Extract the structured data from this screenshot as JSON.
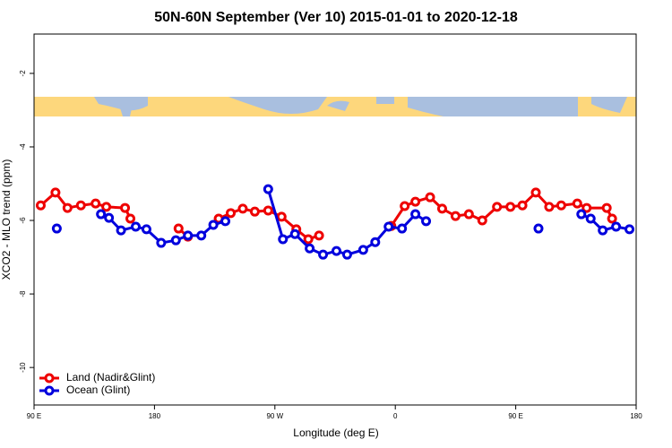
{
  "chart_data": {
    "type": "line",
    "title": "50N-60N September (Ver 10)   2015-01-01 to 2020-12-18",
    "x_label": "Longitude (deg E)",
    "y_label": "XCO2 - MLO trend (ppm)",
    "xlim": [
      90,
      540
    ],
    "xticks": [
      {
        "value": 90,
        "label": "90 E"
      },
      180,
      {
        "value": 270,
        "label": "90 W"
      },
      {
        "value": 360,
        "label": "0"
      },
      {
        "value": 450,
        "label": "90 E"
      },
      {
        "value": 540,
        "label": "180"
      }
    ],
    "ylim": [
      -11.02,
      -0.93
    ],
    "yticks": [
      -2,
      -4,
      -6,
      -8,
      -10
    ],
    "legend": "bottom-left",
    "series": [
      {
        "name": "Land (Nadir&Glint)",
        "color": "#ee0000",
        "x": [
          95,
          106,
          115,
          125,
          136,
          144,
          158,
          162,
          null,
          198,
          205,
          null,
          228,
          237,
          246,
          255,
          265,
          275,
          286,
          295,
          303,
          null,
          357,
          367,
          375,
          386,
          395,
          405,
          415,
          425,
          436,
          446,
          455,
          465,
          475,
          484,
          496,
          503,
          518,
          522
        ],
        "values": [
          -5.59,
          -5.24,
          -5.66,
          -5.59,
          -5.54,
          -5.63,
          -5.66,
          -5.95,
          null,
          -6.22,
          -6.44,
          null,
          -5.95,
          -5.8,
          -5.68,
          -5.76,
          -5.73,
          -5.9,
          -6.24,
          -6.51,
          -6.41,
          null,
          -6.15,
          -5.61,
          -5.49,
          -5.37,
          -5.68,
          -5.88,
          -5.83,
          -6.0,
          -5.63,
          -5.63,
          -5.59,
          -5.24,
          -5.63,
          -5.59,
          -5.54,
          -5.66,
          -5.66,
          -5.95
        ]
      },
      {
        "name": "Ocean (Glint)",
        "color": "#0000dd",
        "x": [
          107,
          null,
          140,
          146,
          155,
          166,
          174,
          185,
          196,
          205,
          215,
          224,
          233,
          null,
          265,
          276,
          285,
          296,
          306,
          316,
          324,
          336,
          345,
          355,
          365,
          375,
          383,
          null,
          467,
          null,
          499,
          506,
          515,
          525,
          535
        ],
        "values": [
          -6.22,
          null,
          -5.83,
          -5.93,
          -6.27,
          -6.17,
          -6.24,
          -6.61,
          -6.54,
          -6.41,
          -6.41,
          -6.12,
          -6.02,
          null,
          -5.15,
          -6.51,
          -6.37,
          -6.76,
          -6.93,
          -6.83,
          -6.93,
          -6.8,
          -6.59,
          -6.17,
          -6.22,
          -5.83,
          -6.02,
          null,
          -6.22,
          null,
          -5.83,
          -5.95,
          -6.27,
          -6.17,
          -6.24
        ]
      }
    ]
  }
}
